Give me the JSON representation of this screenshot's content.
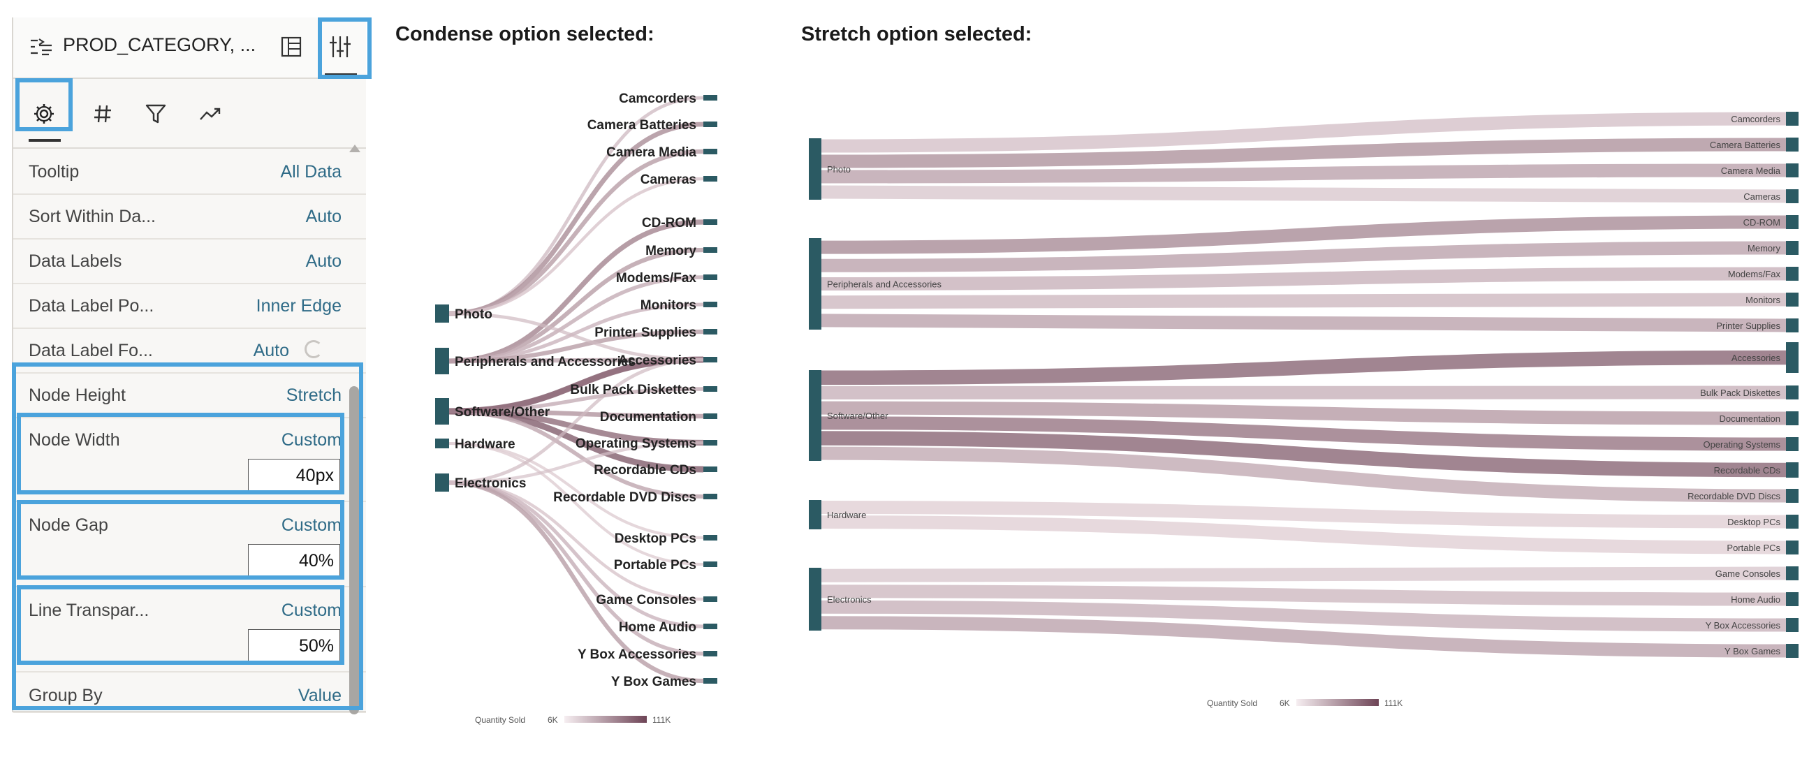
{
  "panel": {
    "header_title": "PROD_CATEGORY, ...",
    "rows": [
      {
        "label": "Tooltip",
        "value": "All Data"
      },
      {
        "label": "Sort Within Da...",
        "value": "Auto"
      },
      {
        "label": "Data Labels",
        "value": "Auto"
      },
      {
        "label": "Data Label Po...",
        "value": "Inner Edge"
      },
      {
        "label": "Data Label Fo...",
        "value": "Auto"
      },
      {
        "label": "Node Height",
        "value": "Stretch"
      },
      {
        "label": "Node Width",
        "value": "Custom",
        "input": "40px"
      },
      {
        "label": "Node Gap",
        "value": "Custom",
        "input": "40%"
      },
      {
        "label": "Line Transpar...",
        "value": "Custom",
        "input": "50%"
      },
      {
        "label": "Group By",
        "value": "Value"
      }
    ],
    "icons": [
      "grammar-icon",
      "layout-icon",
      "properties-icon",
      "settings-icon",
      "hash-icon",
      "filter-icon",
      "trend-icon"
    ]
  },
  "colors": {
    "accent_highlight": "#4ba3dc",
    "node": "#2b5a63",
    "link_dark": "#8c6a76",
    "link_light": "#f1e4e8"
  },
  "chart_data": [
    {
      "type": "sankey",
      "title": "Condense option selected:",
      "sources": [
        "Photo",
        "Peripherals and Accessories",
        "Software/Other",
        "Hardware",
        "Electronics"
      ],
      "targets": [
        "Camcorders",
        "Camera Batteries",
        "Camera Media",
        "Cameras",
        "CD-ROM",
        "Memory",
        "Modems/Fax",
        "Monitors",
        "Printer Supplies",
        "Accessories",
        "Bulk Pack Diskettes",
        "Documentation",
        "Operating Systems",
        "Recordable CDs",
        "Recordable DVD Discs",
        "Desktop PCs",
        "Portable PCs",
        "Game Consoles",
        "Home Audio",
        "Y Box Accessories",
        "Y Box Games"
      ],
      "legend": {
        "label": "Quantity Sold",
        "min": "6K",
        "max": "111K"
      }
    },
    {
      "type": "sankey",
      "title": "Stretch option selected:",
      "sources": [
        "Photo",
        "Peripherals and Accessories",
        "Software/Other",
        "Hardware",
        "Electronics"
      ],
      "targets": [
        "Camcorders",
        "Camera Batteries",
        "Camera Media",
        "Cameras",
        "CD-ROM",
        "Memory",
        "Modems/Fax",
        "Monitors",
        "Printer Supplies",
        "Accessories",
        "Bulk Pack Diskettes",
        "Documentation",
        "Operating Systems",
        "Recordable CDs",
        "Recordable DVD Discs",
        "Desktop PCs",
        "Portable PCs",
        "Game Consoles",
        "Home Audio",
        "Y Box Accessories",
        "Y Box Games"
      ],
      "legend": {
        "label": "Quantity Sold",
        "min": "6K",
        "max": "111K"
      }
    }
  ]
}
